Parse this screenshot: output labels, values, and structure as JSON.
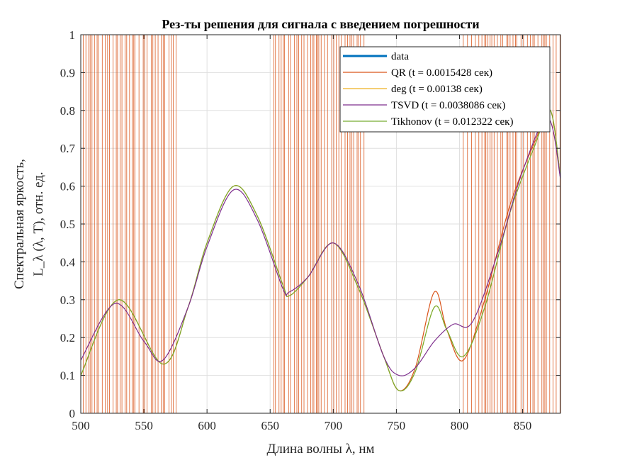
{
  "chart_data": {
    "type": "line",
    "title": "Рез-ты решения для сигнала с введением погрешности",
    "xlabel": "Длина волны λ, нм",
    "ylabel_line1": "Спектральная яркость,",
    "ylabel_line2": "L_λ (λ, T), отн. ед.",
    "xlim": [
      500,
      880
    ],
    "ylim": [
      0,
      1
    ],
    "xticks": [
      500,
      550,
      600,
      650,
      700,
      750,
      800,
      850
    ],
    "yticks": [
      0,
      0.1,
      0.2,
      0.3,
      0.4,
      0.5,
      0.6,
      0.7,
      0.8,
      0.9,
      1
    ],
    "ytick_labels": [
      "0",
      "0.1",
      "0.2",
      "0.3",
      "0.4",
      "0.5",
      "0.6",
      "0.7",
      "0.8",
      "0.9",
      "1"
    ],
    "grid": true,
    "legend_position": "top-right",
    "series": [
      {
        "name": "data",
        "color": "#0072BD",
        "x": [
          500,
          880
        ],
        "y": [
          null,
          null
        ]
      },
      {
        "name": "QR (t = 0.0015428 сек)",
        "color": "#D95319",
        "note_visible_as": "dense vertical oscillation bands",
        "x": [
          500,
          530,
          565,
          585,
          600,
          621,
          640,
          660,
          665,
          680,
          700,
          720,
          740,
          752,
          765,
          780,
          790,
          803,
          820,
          840,
          860,
          872,
          880
        ],
        "y": [
          0.1,
          0.3,
          0.13,
          0.28,
          0.45,
          0.6,
          0.52,
          0.34,
          0.31,
          0.36,
          0.45,
          0.33,
          0.15,
          0.06,
          0.12,
          0.32,
          0.22,
          0.14,
          0.3,
          0.55,
          0.72,
          0.8,
          0.62
        ],
        "band_segments": [
          [
            502,
            576
          ],
          [
            653,
            727
          ],
          [
            803,
            880
          ]
        ]
      },
      {
        "name": "deg (t = 0.00138 сек)",
        "color": "#EDB120",
        "x": [
          500,
          530,
          565,
          585,
          600,
          621,
          640,
          660,
          665,
          680,
          700,
          720,
          740,
          752,
          765,
          780,
          790,
          803,
          820,
          840,
          860,
          872,
          880
        ],
        "y": [
          0.1,
          0.3,
          0.13,
          0.28,
          0.45,
          0.6,
          0.52,
          0.34,
          0.31,
          0.36,
          0.45,
          0.33,
          0.15,
          0.06,
          0.11,
          0.28,
          0.22,
          0.15,
          0.28,
          0.53,
          0.71,
          0.8,
          0.62
        ]
      },
      {
        "name": "TSVD (t = 0.0038086 сек)",
        "color": "#7E2F8E",
        "x": [
          500,
          527,
          550,
          565,
          585,
          600,
          621,
          640,
          660,
          665,
          680,
          700,
          720,
          740,
          752,
          765,
          780,
          795,
          810,
          830,
          850,
          870,
          880
        ],
        "y": [
          0.14,
          0.29,
          0.19,
          0.14,
          0.28,
          0.44,
          0.59,
          0.51,
          0.33,
          0.32,
          0.36,
          0.45,
          0.34,
          0.15,
          0.1,
          0.12,
          0.19,
          0.235,
          0.24,
          0.42,
          0.64,
          0.78,
          0.62
        ]
      },
      {
        "name": "Tikhonov (t = 0.012322 сек)",
        "color": "#77AC30",
        "x": [
          500,
          530,
          565,
          585,
          600,
          621,
          640,
          660,
          665,
          680,
          700,
          720,
          740,
          752,
          765,
          780,
          790,
          803,
          820,
          840,
          860,
          872,
          880
        ],
        "y": [
          0.1,
          0.3,
          0.13,
          0.28,
          0.45,
          0.6,
          0.52,
          0.34,
          0.31,
          0.36,
          0.45,
          0.33,
          0.15,
          0.06,
          0.11,
          0.28,
          0.22,
          0.15,
          0.28,
          0.53,
          0.71,
          0.8,
          0.62
        ]
      }
    ]
  }
}
